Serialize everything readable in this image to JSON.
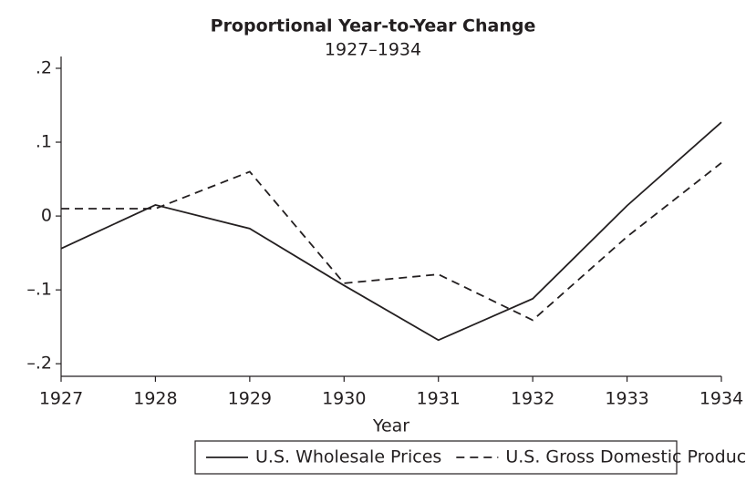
{
  "chart_data": {
    "type": "line",
    "title": "Proportional Year-to-Year Change",
    "subtitle": "1927–1934",
    "x_label": "Year",
    "x": [
      1927,
      1928,
      1929,
      1930,
      1931,
      1932,
      1933,
      1934
    ],
    "xlim": [
      1927,
      1934
    ],
    "xticks": [
      1927,
      1928,
      1929,
      1930,
      1931,
      1932,
      1933,
      1934
    ],
    "ylim": [
      -0.217,
      0.216
    ],
    "yticks": [
      {
        "value": -0.2,
        "label": "–.2"
      },
      {
        "value": -0.1,
        "label": "–.1"
      },
      0,
      {
        "value": 0.1,
        "label": ".1"
      },
      {
        "value": 0.2,
        "label": ".2"
      }
    ],
    "grid": false,
    "legend_position": "bottom",
    "series": [
      {
        "name": "U.S. Wholesale Prices",
        "color": "#231f20",
        "style": "solid",
        "values": [
          -0.044,
          0.015,
          -0.017,
          -0.094,
          -0.168,
          -0.112,
          0.014,
          0.127
        ]
      },
      {
        "name": "U.S. Gross Domestic Product",
        "color": "#231f20",
        "style": "dashed",
        "values": [
          0.01,
          0.01,
          0.06,
          -0.091,
          -0.079,
          -0.141,
          -0.028,
          0.072
        ]
      }
    ]
  }
}
